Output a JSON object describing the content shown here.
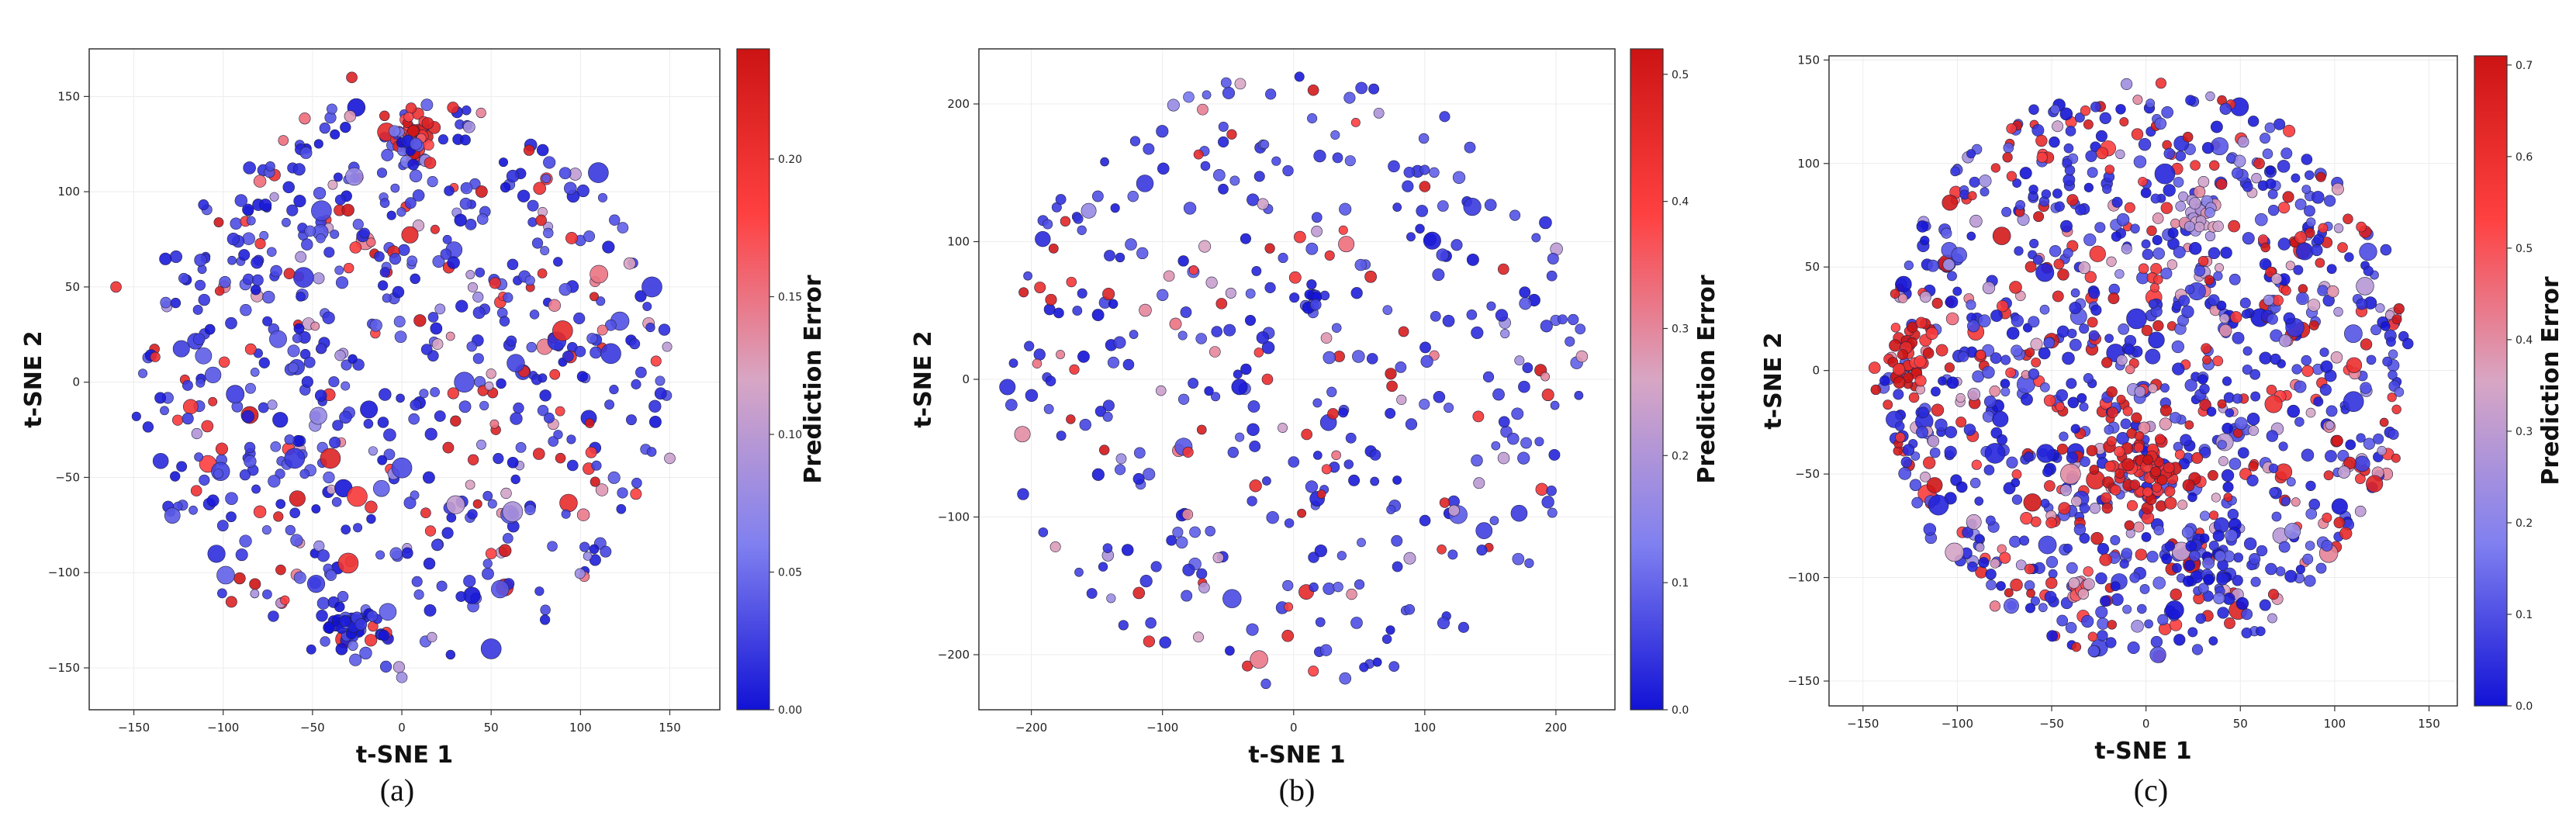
{
  "chart_data": [
    {
      "type": "scatter",
      "panel_label": "(a)",
      "xlabel": "t-SNE 1",
      "ylabel": "t-SNE 2",
      "xlim": [
        -175,
        178
      ],
      "ylim": [
        -172,
        175
      ],
      "xticks": [
        -150,
        -100,
        -50,
        0,
        50,
        100,
        150
      ],
      "yticks": [
        -150,
        -100,
        -50,
        0,
        50,
        100,
        150
      ],
      "grid": true,
      "colorbar": {
        "label": "Prediction Error",
        "min": 0.0,
        "max": 0.24,
        "ticks": [
          0.0,
          0.05,
          0.1,
          0.15,
          0.2
        ],
        "tick_labels": [
          "0.00",
          "0.05",
          "0.10",
          "0.15",
          "0.20"
        ],
        "colormap": [
          "#1212d6",
          "#8080f0",
          "#d8a6c4",
          "#ff4040",
          "#cc1414"
        ]
      },
      "point_cloud": {
        "count": 650,
        "radius": 150,
        "error_max": 0.24,
        "red_fraction": 0.14
      },
      "points": [
        {
          "x": 5,
          "y": 128,
          "error": 0.2,
          "cluster": 40,
          "spread": 13
        },
        {
          "x": -30,
          "y": -128,
          "error": 0.01,
          "cluster": 35,
          "spread": 13
        },
        {
          "x": 5,
          "y": 125,
          "error": 0.02,
          "cluster": 14,
          "spread": 12
        },
        {
          "x": -40,
          "y": -40,
          "error": 0.22,
          "size": 2
        },
        {
          "x": -60,
          "y": -40,
          "error": 0.02,
          "size": 2
        },
        {
          "x": 0,
          "y": -45,
          "error": 0.03,
          "size": 2
        },
        {
          "x": 90,
          "y": 27,
          "error": 0.21,
          "size": 2
        },
        {
          "x": 62,
          "y": -68,
          "error": 0.09,
          "size": 2
        },
        {
          "x": -55,
          "y": 55,
          "error": 0.02,
          "size": 2
        },
        {
          "x": -45,
          "y": 90,
          "error": 0.03,
          "size": 2
        },
        {
          "x": 140,
          "y": 50,
          "error": 0.02,
          "size": 2
        },
        {
          "x": 117,
          "y": 15,
          "error": 0.02,
          "size": 2
        },
        {
          "x": 50,
          "y": -140,
          "error": 0.02,
          "size": 2
        },
        {
          "x": -30,
          "y": -95,
          "error": 0.2,
          "size": 2
        },
        {
          "x": -25,
          "y": -60,
          "error": 0.19,
          "size": 2
        },
        {
          "x": -63,
          "y": 57,
          "error": 0.22
        },
        {
          "x": -28,
          "y": 160,
          "error": 0.22
        },
        {
          "x": -160,
          "y": 50,
          "error": 0.2
        },
        {
          "x": 110,
          "y": 110,
          "error": 0.02,
          "size": 2
        },
        {
          "x": 78,
          "y": 85,
          "error": 0.22
        },
        {
          "x": 150,
          "y": -40,
          "error": 0.11
        },
        {
          "x": 0,
          "y": -155,
          "error": 0.08
        },
        {
          "x": 20,
          "y": 20,
          "error": 0.12
        },
        {
          "x": -115,
          "y": -57,
          "error": 0.2
        },
        {
          "x": 50,
          "y": -90,
          "error": 0.18
        },
        {
          "x": 35,
          "y": 0,
          "error": 0.03,
          "size": 2
        }
      ]
    },
    {
      "type": "scatter",
      "panel_label": "(b)",
      "xlabel": "t-SNE 1",
      "ylabel": "t-SNE 2",
      "xlim": [
        -240,
        245
      ],
      "ylim": [
        -240,
        240
      ],
      "xticks": [
        -200,
        -100,
        0,
        100,
        200
      ],
      "yticks": [
        -200,
        -100,
        0,
        100,
        200
      ],
      "grid": true,
      "colorbar": {
        "label": "Prediction Error",
        "min": 0.0,
        "max": 0.52,
        "ticks": [
          0.0,
          0.1,
          0.2,
          0.3,
          0.4,
          0.5
        ],
        "tick_labels": [
          "0.0",
          "0.1",
          "0.2",
          "0.3",
          "0.4",
          "0.5"
        ],
        "colormap": [
          "#1212d6",
          "#8080f0",
          "#d8a6c4",
          "#ff4040",
          "#cc1414"
        ]
      },
      "point_cloud": {
        "count": 380,
        "radius": 225,
        "error_max": 0.52,
        "red_fraction": 0.12
      },
      "points": [
        {
          "x": 15,
          "y": 55,
          "error": 0.02,
          "cluster": 8,
          "spread": 9
        },
        {
          "x": -20,
          "y": 0,
          "error": 0.45
        },
        {
          "x": -60,
          "y": 20,
          "error": 0.3
        },
        {
          "x": 30,
          "y": -25,
          "error": 0.48
        },
        {
          "x": 75,
          "y": -5,
          "error": 0.5
        },
        {
          "x": 0,
          "y": -60,
          "error": 0.05
        },
        {
          "x": -55,
          "y": 55,
          "error": 0.48
        },
        {
          "x": 25,
          "y": 30,
          "error": 0.28
        },
        {
          "x": 15,
          "y": 210,
          "error": 0.5
        },
        {
          "x": -80,
          "y": 205,
          "error": 0.12
        },
        {
          "x": 100,
          "y": 140,
          "error": 0.5
        },
        {
          "x": 160,
          "y": 80,
          "error": 0.48
        },
        {
          "x": -95,
          "y": 75,
          "error": 0.28
        },
        {
          "x": 10,
          "y": -40,
          "error": 0.46
        },
        {
          "x": 60,
          "y": 15,
          "error": 0.03
        }
      ]
    },
    {
      "type": "scatter",
      "panel_label": "(c)",
      "xlabel": "t-SNE 1",
      "ylabel": "t-SNE 2",
      "xlim": [
        -168,
        165
      ],
      "ylim": [
        -162,
        152
      ],
      "xticks": [
        -150,
        -100,
        -50,
        0,
        50,
        100,
        150
      ],
      "yticks": [
        -150,
        -100,
        -50,
        0,
        50,
        100,
        150
      ],
      "grid": true,
      "colorbar": {
        "label": "Prediction Error",
        "min": 0.0,
        "max": 0.71,
        "ticks": [
          0.0,
          0.1,
          0.2,
          0.3,
          0.4,
          0.5,
          0.6,
          0.7
        ],
        "tick_labels": [
          "0.0",
          "0.1",
          "0.2",
          "0.3",
          "0.4",
          "0.5",
          "0.6",
          "0.7"
        ],
        "colormap": [
          "#1212d6",
          "#8080f0",
          "#d8a6c4",
          "#ff4040",
          "#cc1414"
        ]
      },
      "point_cloud": {
        "count": 1100,
        "radius": 140,
        "error_max": 0.71,
        "red_fraction": 0.22
      },
      "points": [
        {
          "x": 0,
          "y": -50,
          "error": 0.66,
          "cluster": 70,
          "spread": 24
        },
        {
          "x": 30,
          "y": 75,
          "error": 0.3,
          "cluster": 30,
          "spread": 14
        },
        {
          "x": -35,
          "y": -105,
          "error": 0.42,
          "cluster": 14,
          "spread": 7
        },
        {
          "x": -125,
          "y": 5,
          "error": 0.66,
          "cluster": 40,
          "spread": 28
        },
        {
          "x": -5,
          "y": 25,
          "error": 0.03,
          "size": 2
        },
        {
          "x": 10,
          "y": 95,
          "error": 0.03,
          "size": 2
        },
        {
          "x": -110,
          "y": -65,
          "error": 0.03,
          "size": 2
        },
        {
          "x": -80,
          "y": -40,
          "error": 0.03,
          "size": 2
        },
        {
          "x": 110,
          "y": -15,
          "error": 0.05,
          "size": 2
        },
        {
          "x": -40,
          "y": -50,
          "error": 0.4,
          "size": 2
        },
        {
          "x": 40,
          "y": 90,
          "error": 0.65
        },
        {
          "x": 60,
          "y": 100,
          "error": 0.65
        },
        {
          "x": 30,
          "y": -90,
          "error": 0.03,
          "cluster": 35,
          "spread": 25
        }
      ]
    }
  ]
}
